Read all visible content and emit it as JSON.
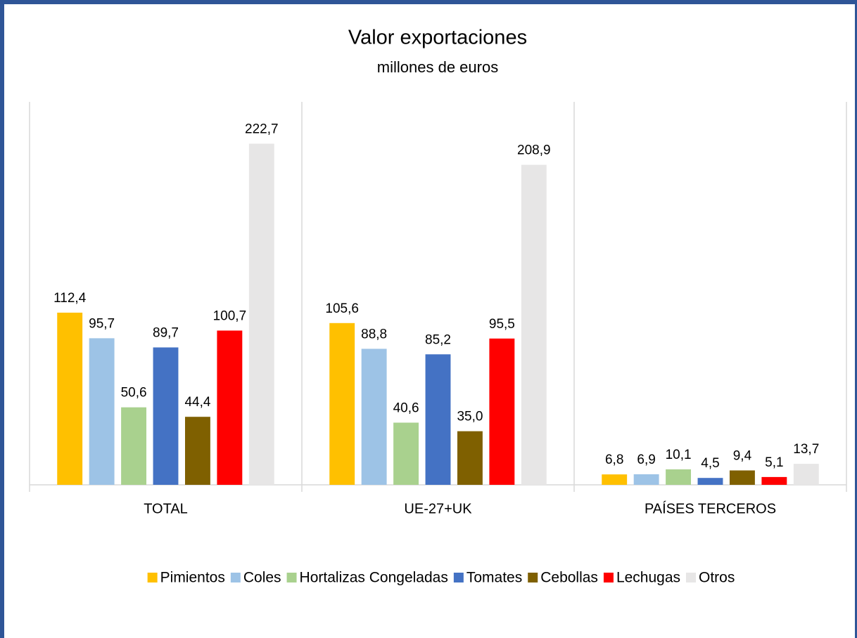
{
  "chart_data": {
    "type": "bar",
    "title": "Valor exportaciones",
    "subtitle": "millones de euros",
    "categories": [
      "TOTAL",
      "UE-27+UK",
      "PAÍSES TERCEROS"
    ],
    "ylim": [
      0,
      250
    ],
    "legend": "bottom",
    "series": [
      {
        "name": "Pimientos",
        "color": "#ffc000",
        "values": [
          112.4,
          105.6,
          6.8
        ],
        "value_labels": [
          "112,4",
          "105,6",
          "6,8"
        ]
      },
      {
        "name": "Coles",
        "color": "#9dc3e6",
        "values": [
          95.7,
          88.8,
          6.9
        ],
        "value_labels": [
          "95,7",
          "88,8",
          "6,9"
        ]
      },
      {
        "name": "Hortalizas Congeladas",
        "color": "#a9d18e",
        "values": [
          50.6,
          40.6,
          10.1
        ],
        "value_labels": [
          "50,6",
          "40,6",
          "10,1"
        ]
      },
      {
        "name": "Tomates",
        "color": "#4472c4",
        "values": [
          89.7,
          85.2,
          4.5
        ],
        "value_labels": [
          "89,7",
          "85,2",
          "4,5"
        ]
      },
      {
        "name": "Cebollas",
        "color": "#7f6000",
        "values": [
          44.4,
          35.0,
          9.4
        ],
        "value_labels": [
          "44,4",
          "35,0",
          "9,4"
        ]
      },
      {
        "name": "Lechugas",
        "color": "#ff0000",
        "values": [
          100.7,
          95.5,
          5.1
        ],
        "value_labels": [
          "100,7",
          "95,5",
          "5,1"
        ]
      },
      {
        "name": "Otros",
        "color": "#e7e6e6",
        "values": [
          222.7,
          208.9,
          13.7
        ],
        "value_labels": [
          "222,7",
          "208,9",
          "13,7"
        ]
      }
    ]
  }
}
